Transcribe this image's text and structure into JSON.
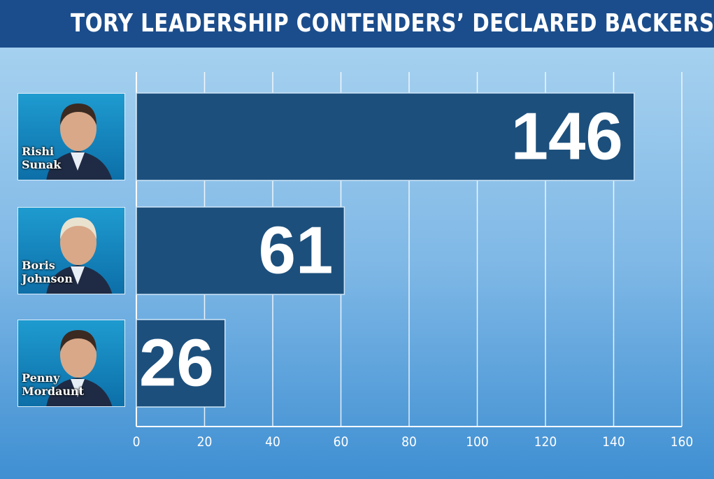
{
  "chart_data": {
    "type": "bar",
    "orientation": "horizontal",
    "title": "TORY LEADERSHIP CONTENDERS’ DECLARED BACKERS",
    "categories": [
      "Rishi Sunak",
      "Boris Johnson",
      "Penny Mordaunt"
    ],
    "values": [
      146,
      61,
      26
    ],
    "color": "#1c4f7c",
    "xlim": [
      0,
      160
    ],
    "xticks": [
      0,
      20,
      40,
      60,
      80,
      100,
      120,
      140,
      160
    ],
    "grid": true
  }
}
